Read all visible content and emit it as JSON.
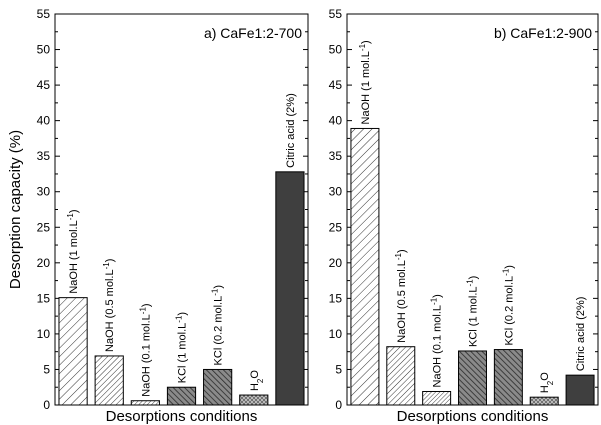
{
  "chart_data": {
    "ylabel": "Desorption capacity (%)",
    "ylim": [
      0,
      55
    ],
    "yticks": [
      0,
      5,
      10,
      15,
      20,
      25,
      30,
      35,
      40,
      45,
      50,
      55
    ],
    "panels": [
      {
        "type": "bar",
        "title": "a) CaFe1:2-700",
        "xlabel": "Desorptions conditions",
        "categories": [
          {
            "label": "NaOH (1 mol.L",
            "sup": "-1",
            "close": ")",
            "value": 15.1,
            "pattern": "hatch-sparse",
            "fill": "#ffffff"
          },
          {
            "label": "NaOH (0.5 mol.L",
            "sup": "-1",
            "close": ")",
            "value": 6.9,
            "pattern": "hatch-mid",
            "fill": "#ffffff"
          },
          {
            "label": "NaOH (0.1 mol.L",
            "sup": "-1",
            "close": ")",
            "value": 0.6,
            "pattern": "hatch-dense",
            "fill": "#ffffff"
          },
          {
            "label": "KCl (1 mol.L",
            "sup": "-1",
            "close": ")",
            "value": 2.5,
            "pattern": "hatch-dark",
            "fill": "#777777"
          },
          {
            "label": "KCl (0.2 mol.L",
            "sup": "-1",
            "close": ")",
            "value": 5.0,
            "pattern": "hatch-dark",
            "fill": "#777777"
          },
          {
            "label": "H",
            "sub": "2",
            "close": "O",
            "value": 1.4,
            "pattern": "crosshatch",
            "fill": "#bbbbbb"
          },
          {
            "label": "Citric acid (2%)",
            "sup": "",
            "close": "",
            "value": 32.8,
            "pattern": "solid",
            "fill": "#3f3f3f"
          }
        ]
      },
      {
        "type": "bar",
        "title": "b) CaFe1:2-900",
        "xlabel": "Desorptions conditions",
        "categories": [
          {
            "label": "NaOH (1 mol.L",
            "sup": "-1",
            "close": ")",
            "value": 38.9,
            "pattern": "hatch-sparse",
            "fill": "#ffffff"
          },
          {
            "label": "NaOH (0.5 mol.L",
            "sup": "-1",
            "close": ")",
            "value": 8.2,
            "pattern": "hatch-mid",
            "fill": "#ffffff"
          },
          {
            "label": "NaOH (0.1 mol.L",
            "sup": "-1",
            "close": ")",
            "value": 1.9,
            "pattern": "hatch-dense",
            "fill": "#ffffff"
          },
          {
            "label": "KCl (1 mol.L",
            "sup": "-1",
            "close": ")",
            "value": 7.6,
            "pattern": "hatch-dark",
            "fill": "#777777"
          },
          {
            "label": "KCl (0.2 mol.L",
            "sup": "-1",
            "close": ")",
            "value": 7.8,
            "pattern": "hatch-dark",
            "fill": "#777777"
          },
          {
            "label": "H",
            "sub": "2",
            "close": "O",
            "value": 1.1,
            "pattern": "crosshatch",
            "fill": "#bbbbbb"
          },
          {
            "label": "Citric acid (2%)",
            "sup": "",
            "close": "",
            "value": 4.2,
            "pattern": "solid",
            "fill": "#3f3f3f"
          }
        ]
      }
    ]
  }
}
